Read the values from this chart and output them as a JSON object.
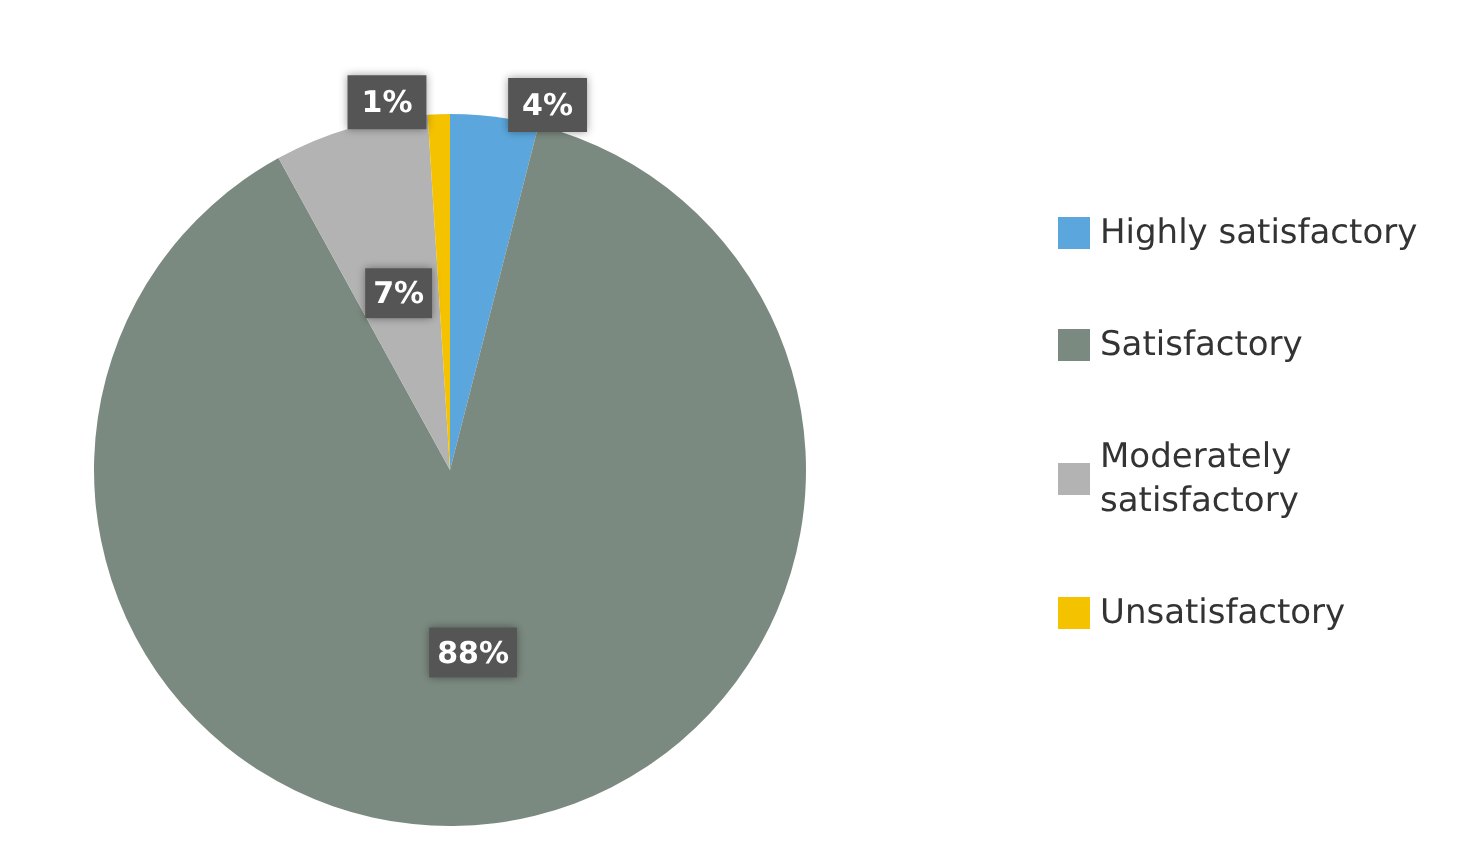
{
  "chart_data": {
    "type": "pie",
    "categories": [
      "Highly satisfactory",
      "Satisfactory",
      "Moderately satisfactory",
      "Unsatisfactory"
    ],
    "values": [
      4,
      88,
      7,
      1
    ],
    "colors": [
      "#5ba7dd",
      "#7b8a80",
      "#b3b3b3",
      "#f5c200"
    ],
    "value_labels": [
      "4%",
      "88%",
      "7%",
      "1%"
    ],
    "legend": "right"
  }
}
